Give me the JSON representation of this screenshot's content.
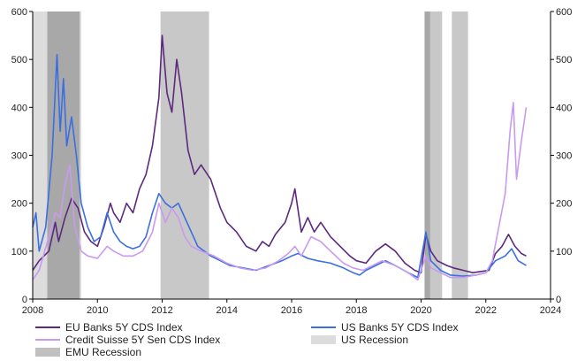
{
  "chart_data": {
    "type": "line",
    "x_range": [
      2008,
      2024
    ],
    "x_ticks": [
      "2008",
      "2010",
      "2012",
      "2014",
      "2016",
      "2018",
      "2020",
      "2022",
      "2024"
    ],
    "ylim": [
      0,
      600
    ],
    "y_ticks_left": [
      "0",
      "100",
      "200",
      "300",
      "400",
      "500",
      "600"
    ],
    "y_ticks_right": [
      "0",
      "100",
      "200",
      "300",
      "400",
      "500",
      "600"
    ],
    "grid": false,
    "legend_position": "bottom",
    "shaded_periods": [
      {
        "name": "US Recession",
        "color": "#dcdcdc",
        "start": 2008.0,
        "end": 2009.5
      },
      {
        "name": "EMU Recession",
        "color": "#a8a8a8",
        "start": 2008.45,
        "end": 2009.45
      },
      {
        "name": "EMU Recession",
        "color": "#c8c8c8",
        "start": 2011.95,
        "end": 2013.45
      },
      {
        "name": "EMU Recession",
        "color": "#c8c8c8",
        "start": 2020.1,
        "end": 2020.65
      },
      {
        "name": "US Recession",
        "color": "#a8a8a8",
        "start": 2020.12,
        "end": 2020.28
      },
      {
        "name": "EMU Recession",
        "color": "#c8c8c8",
        "start": 2020.95,
        "end": 2021.45
      }
    ],
    "series": [
      {
        "name": "EU Banks 5Y CDS Index",
        "color": "#5b2a7e",
        "points": [
          [
            2008.0,
            60
          ],
          [
            2008.2,
            80
          ],
          [
            2008.5,
            100
          ],
          [
            2008.7,
            160
          ],
          [
            2008.8,
            120
          ],
          [
            2009.0,
            170
          ],
          [
            2009.2,
            210
          ],
          [
            2009.4,
            190
          ],
          [
            2009.6,
            140
          ],
          [
            2009.8,
            120
          ],
          [
            2010.0,
            110
          ],
          [
            2010.2,
            150
          ],
          [
            2010.4,
            200
          ],
          [
            2010.5,
            180
          ],
          [
            2010.7,
            160
          ],
          [
            2010.9,
            200
          ],
          [
            2011.1,
            180
          ],
          [
            2011.3,
            230
          ],
          [
            2011.5,
            260
          ],
          [
            2011.7,
            320
          ],
          [
            2011.9,
            420
          ],
          [
            2012.0,
            550
          ],
          [
            2012.15,
            430
          ],
          [
            2012.3,
            390
          ],
          [
            2012.45,
            500
          ],
          [
            2012.6,
            430
          ],
          [
            2012.8,
            310
          ],
          [
            2013.0,
            260
          ],
          [
            2013.2,
            280
          ],
          [
            2013.5,
            250
          ],
          [
            2013.8,
            190
          ],
          [
            2014.0,
            160
          ],
          [
            2014.3,
            140
          ],
          [
            2014.6,
            110
          ],
          [
            2014.9,
            100
          ],
          [
            2015.1,
            120
          ],
          [
            2015.3,
            110
          ],
          [
            2015.5,
            135
          ],
          [
            2015.8,
            160
          ],
          [
            2016.0,
            200
          ],
          [
            2016.1,
            230
          ],
          [
            2016.3,
            140
          ],
          [
            2016.5,
            170
          ],
          [
            2016.7,
            140
          ],
          [
            2016.9,
            160
          ],
          [
            2017.2,
            130
          ],
          [
            2017.5,
            110
          ],
          [
            2017.8,
            90
          ],
          [
            2018.0,
            80
          ],
          [
            2018.3,
            75
          ],
          [
            2018.6,
            100
          ],
          [
            2018.9,
            115
          ],
          [
            2019.2,
            100
          ],
          [
            2019.5,
            75
          ],
          [
            2019.8,
            60
          ],
          [
            2020.0,
            55
          ],
          [
            2020.15,
            135
          ],
          [
            2020.3,
            100
          ],
          [
            2020.5,
            80
          ],
          [
            2020.8,
            70
          ],
          [
            2021.0,
            65
          ],
          [
            2021.3,
            60
          ],
          [
            2021.6,
            55
          ],
          [
            2021.9,
            58
          ],
          [
            2022.1,
            60
          ],
          [
            2022.3,
            95
          ],
          [
            2022.5,
            110
          ],
          [
            2022.7,
            135
          ],
          [
            2022.9,
            110
          ],
          [
            2023.1,
            95
          ],
          [
            2023.25,
            90
          ]
        ]
      },
      {
        "name": "US Banks 5Y CDS Index",
        "color": "#3b6fe0",
        "points": [
          [
            2008.0,
            150
          ],
          [
            2008.1,
            180
          ],
          [
            2008.2,
            100
          ],
          [
            2008.4,
            150
          ],
          [
            2008.6,
            300
          ],
          [
            2008.75,
            510
          ],
          [
            2008.85,
            350
          ],
          [
            2008.95,
            460
          ],
          [
            2009.05,
            320
          ],
          [
            2009.2,
            380
          ],
          [
            2009.35,
            300
          ],
          [
            2009.5,
            200
          ],
          [
            2009.7,
            150
          ],
          [
            2009.9,
            120
          ],
          [
            2010.1,
            130
          ],
          [
            2010.3,
            180
          ],
          [
            2010.5,
            140
          ],
          [
            2010.7,
            120
          ],
          [
            2010.9,
            110
          ],
          [
            2011.1,
            105
          ],
          [
            2011.3,
            110
          ],
          [
            2011.5,
            130
          ],
          [
            2011.7,
            180
          ],
          [
            2011.9,
            220
          ],
          [
            2012.1,
            200
          ],
          [
            2012.3,
            190
          ],
          [
            2012.5,
            200
          ],
          [
            2012.7,
            170
          ],
          [
            2012.9,
            140
          ],
          [
            2013.1,
            110
          ],
          [
            2013.3,
            100
          ],
          [
            2013.5,
            90
          ],
          [
            2013.8,
            80
          ],
          [
            2014.1,
            70
          ],
          [
            2014.5,
            65
          ],
          [
            2014.9,
            60
          ],
          [
            2015.3,
            70
          ],
          [
            2015.7,
            80
          ],
          [
            2016.0,
            90
          ],
          [
            2016.2,
            95
          ],
          [
            2016.5,
            85
          ],
          [
            2016.8,
            80
          ],
          [
            2017.2,
            75
          ],
          [
            2017.6,
            65
          ],
          [
            2017.9,
            55
          ],
          [
            2018.1,
            50
          ],
          [
            2018.3,
            60
          ],
          [
            2018.6,
            70
          ],
          [
            2018.9,
            80
          ],
          [
            2019.2,
            70
          ],
          [
            2019.6,
            55
          ],
          [
            2019.9,
            45
          ],
          [
            2020.15,
            140
          ],
          [
            2020.3,
            80
          ],
          [
            2020.6,
            60
          ],
          [
            2020.9,
            50
          ],
          [
            2021.3,
            48
          ],
          [
            2021.7,
            50
          ],
          [
            2022.0,
            55
          ],
          [
            2022.3,
            80
          ],
          [
            2022.6,
            90
          ],
          [
            2022.8,
            105
          ],
          [
            2023.0,
            80
          ],
          [
            2023.25,
            70
          ]
        ]
      },
      {
        "name": "Credit Suisse 5Y Sen CDS Index",
        "color": "#c89af0",
        "points": [
          [
            2008.0,
            40
          ],
          [
            2008.2,
            60
          ],
          [
            2008.5,
            130
          ],
          [
            2008.7,
            180
          ],
          [
            2008.85,
            170
          ],
          [
            2009.0,
            240
          ],
          [
            2009.15,
            280
          ],
          [
            2009.3,
            150
          ],
          [
            2009.5,
            100
          ],
          [
            2009.7,
            90
          ],
          [
            2010.0,
            85
          ],
          [
            2010.3,
            110
          ],
          [
            2010.5,
            100
          ],
          [
            2010.8,
            90
          ],
          [
            2011.1,
            90
          ],
          [
            2011.4,
            100
          ],
          [
            2011.7,
            140
          ],
          [
            2011.9,
            200
          ],
          [
            2012.1,
            160
          ],
          [
            2012.3,
            190
          ],
          [
            2012.5,
            170
          ],
          [
            2012.7,
            130
          ],
          [
            2012.9,
            110
          ],
          [
            2013.2,
            100
          ],
          [
            2013.6,
            90
          ],
          [
            2014.0,
            75
          ],
          [
            2014.4,
            65
          ],
          [
            2014.8,
            60
          ],
          [
            2015.2,
            65
          ],
          [
            2015.6,
            80
          ],
          [
            2015.9,
            95
          ],
          [
            2016.1,
            110
          ],
          [
            2016.3,
            90
          ],
          [
            2016.6,
            130
          ],
          [
            2016.9,
            120
          ],
          [
            2017.2,
            100
          ],
          [
            2017.6,
            75
          ],
          [
            2017.9,
            65
          ],
          [
            2018.2,
            60
          ],
          [
            2018.5,
            70
          ],
          [
            2018.8,
            80
          ],
          [
            2019.2,
            70
          ],
          [
            2019.6,
            55
          ],
          [
            2019.9,
            40
          ],
          [
            2020.15,
            90
          ],
          [
            2020.3,
            65
          ],
          [
            2020.6,
            55
          ],
          [
            2020.9,
            45
          ],
          [
            2021.3,
            45
          ],
          [
            2021.7,
            50
          ],
          [
            2022.0,
            55
          ],
          [
            2022.2,
            80
          ],
          [
            2022.4,
            150
          ],
          [
            2022.6,
            220
          ],
          [
            2022.75,
            350
          ],
          [
            2022.85,
            410
          ],
          [
            2022.95,
            250
          ],
          [
            2023.1,
            330
          ],
          [
            2023.25,
            400
          ]
        ]
      }
    ],
    "legend": [
      {
        "label": "EU Banks 5Y CDS Index",
        "kind": "line",
        "color": "#5b2a7e"
      },
      {
        "label": "US Banks 5Y CDS Index",
        "kind": "line",
        "color": "#3b6fe0"
      },
      {
        "label": "Credit Suisse 5Y Sen CDS Index",
        "kind": "line",
        "color": "#c89af0"
      },
      {
        "label": "US Recession",
        "kind": "box",
        "color": "#dcdcdc"
      },
      {
        "label": "EMU Recession",
        "kind": "box",
        "color": "#c0c0c0"
      }
    ]
  }
}
